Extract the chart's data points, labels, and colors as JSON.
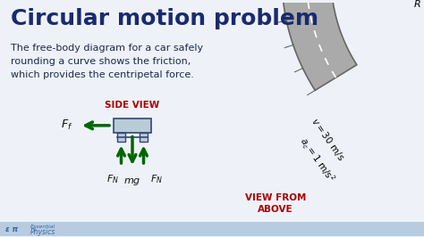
{
  "title": "Circular motion problem",
  "title_color": "#1a2a6e",
  "title_fontsize": 18,
  "body_text": "The free-body diagram for a car safely\nrounding a curve shows the friction,\nwhich provides the centripetal force.",
  "body_text_color": "#1a2a4a",
  "body_fontsize": 8,
  "side_view_label": "SIDE VIEW",
  "side_view_color": "#aa0000",
  "view_from_above_label": "VIEW FROM\nABOVE",
  "view_from_above_color": "#aa0000",
  "arrow_color": "#006600",
  "car_fill": "#b8ccd8",
  "car_edge": "#334477",
  "road_gray": "#999999",
  "road_edge": "#666666",
  "car_road_fill": "#2244aa",
  "bg_color": "#eef2f8",
  "footer_bar_color": "#b8cce0",
  "footer_text_color": "#3366aa"
}
